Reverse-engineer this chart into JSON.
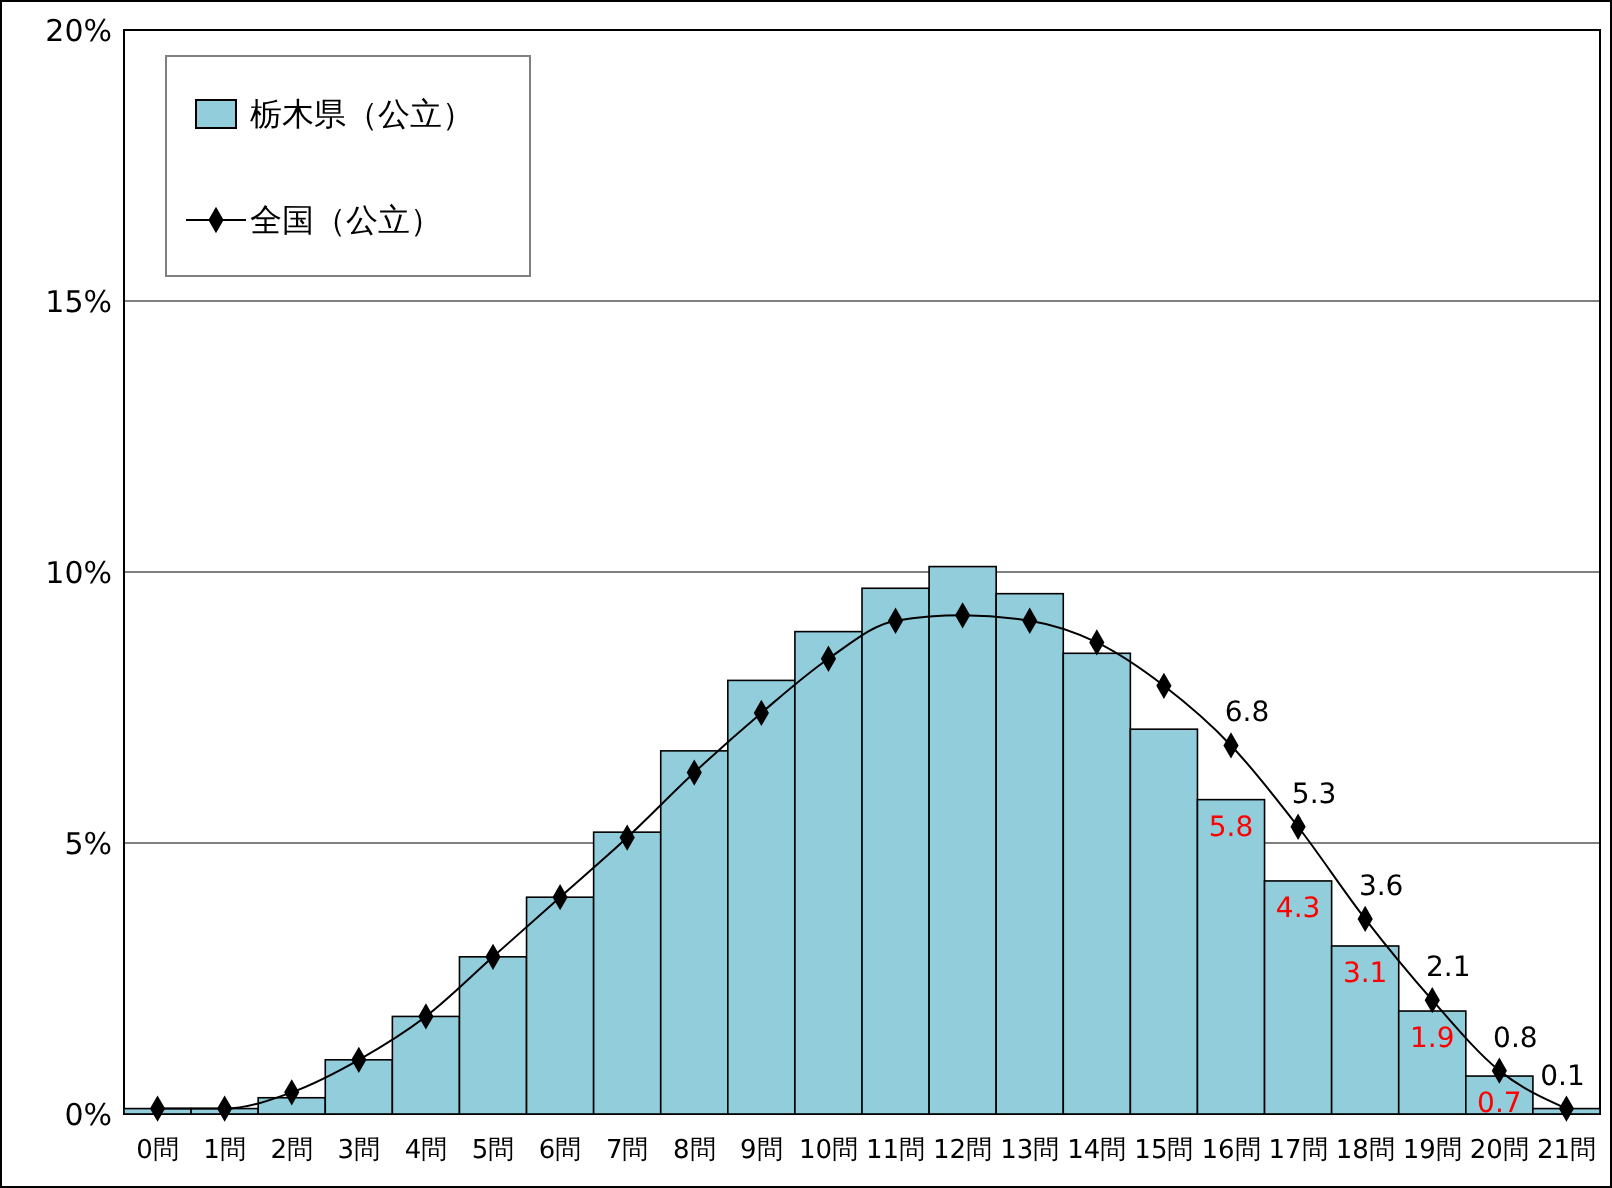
{
  "chart_data": {
    "type": "bar",
    "categories": [
      "0問",
      "1問",
      "2問",
      "3問",
      "4問",
      "5問",
      "6問",
      "7問",
      "8問",
      "9問",
      "10問",
      "11問",
      "12問",
      "13問",
      "14問",
      "15問",
      "16問",
      "17問",
      "18問",
      "19問",
      "20問",
      "21問"
    ],
    "series": [
      {
        "name": "栃木県（公立）",
        "color": "#92cddc",
        "values": [
          0.1,
          0.1,
          0.3,
          1.0,
          1.8,
          2.9,
          4.0,
          5.2,
          6.7,
          8.0,
          8.9,
          9.7,
          10.1,
          9.6,
          8.5,
          7.1,
          5.8,
          4.3,
          3.1,
          1.9,
          0.7,
          0.1
        ],
        "value_labels": [
          null,
          null,
          null,
          null,
          null,
          null,
          null,
          null,
          null,
          null,
          null,
          null,
          null,
          null,
          null,
          null,
          "5.8",
          "4.3",
          "3.1",
          "1.9",
          "0.7",
          null
        ]
      },
      {
        "name": "全国（公立）",
        "type": "line",
        "color": "#000000",
        "marker": "diamond",
        "values": [
          0.1,
          0.1,
          0.4,
          1.0,
          1.8,
          2.9,
          4.0,
          5.1,
          6.3,
          7.4,
          8.4,
          9.1,
          9.2,
          9.1,
          8.7,
          7.9,
          6.8,
          5.3,
          3.6,
          2.1,
          0.8,
          0.1
        ],
        "value_labels": [
          null,
          null,
          null,
          null,
          null,
          null,
          null,
          null,
          null,
          null,
          null,
          null,
          null,
          null,
          null,
          null,
          "6.8",
          "5.3",
          "3.6",
          "2.1",
          "0.8",
          "0.1"
        ]
      }
    ],
    "ylim": [
      0,
      20
    ],
    "yticks": [
      {
        "value": 0,
        "label": "0%"
      },
      {
        "value": 5,
        "label": "5%"
      },
      {
        "value": 10,
        "label": "10%"
      },
      {
        "value": 15,
        "label": "15%"
      },
      {
        "value": 20,
        "label": "20%"
      }
    ],
    "grid": "y",
    "legend": "top left"
  }
}
